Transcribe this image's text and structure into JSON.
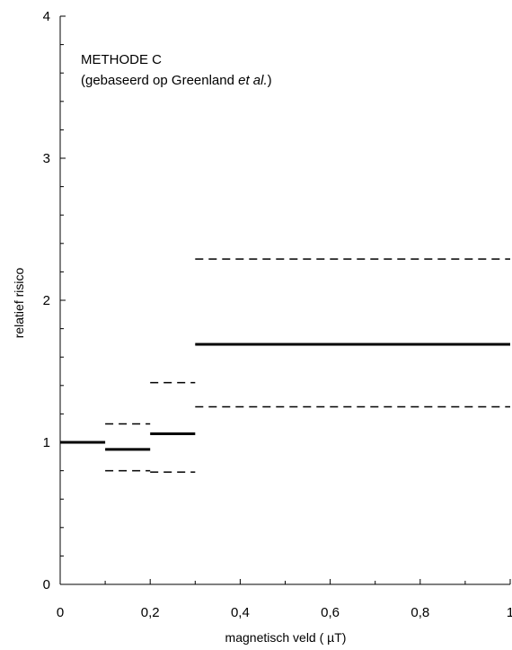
{
  "chart_data": {
    "type": "line",
    "annotation": {
      "line1": "METHODE C",
      "line2_prefix": "(gebaseerd op Greenland ",
      "line2_italic": "et al.",
      "line2_suffix": ")"
    },
    "xlabel": "magnetisch veld ( µT)",
    "ylabel": "relatief risico",
    "xlim": [
      0,
      1
    ],
    "ylim": [
      0,
      4
    ],
    "x_ticks": [
      0,
      0.2,
      0.4,
      0.6,
      0.8,
      1
    ],
    "x_tick_labels": [
      "0",
      "0,2",
      "0,4",
      "0,6",
      "0,8",
      "1"
    ],
    "y_ticks": [
      0,
      1,
      2,
      3,
      4
    ],
    "y_tick_labels": [
      "0",
      "1",
      "2",
      "3",
      "4"
    ],
    "grid": false,
    "series": [
      {
        "style": "solid",
        "segments": [
          {
            "x0": 0,
            "x1": 0.1,
            "y": 1.0
          },
          {
            "x0": 0.1,
            "x1": 0.2,
            "y": 0.95
          },
          {
            "x0": 0.2,
            "x1": 0.3,
            "y": 1.06
          },
          {
            "x0": 0.3,
            "x1": 1.0,
            "y": 1.69
          }
        ]
      },
      {
        "style": "dashed",
        "segments": [
          {
            "x0": 0.1,
            "x1": 0.2,
            "y": 1.13
          },
          {
            "x0": 0.2,
            "x1": 0.3,
            "y": 1.42
          },
          {
            "x0": 0.3,
            "x1": 1.0,
            "y": 2.29
          }
        ]
      },
      {
        "style": "dashed",
        "segments": [
          {
            "x0": 0.1,
            "x1": 0.2,
            "y": 0.8
          },
          {
            "x0": 0.2,
            "x1": 0.3,
            "y": 0.79
          },
          {
            "x0": 0.3,
            "x1": 1.0,
            "y": 1.25
          }
        ]
      }
    ]
  }
}
